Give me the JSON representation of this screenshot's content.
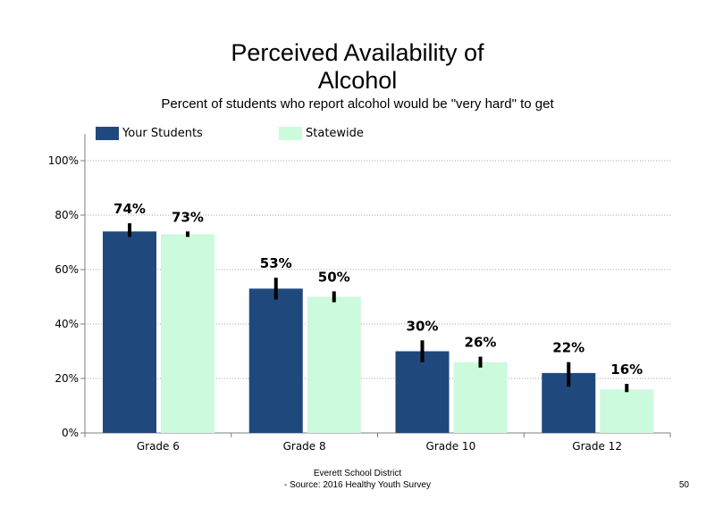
{
  "header": {
    "title_line1": "Perceived Availability of",
    "title_line2": "Alcohol",
    "subtitle": "Percent of students  who report alcohol would be \"very hard\" to get"
  },
  "legend": {
    "series1": "Your Students",
    "series2": "Statewide"
  },
  "footer": {
    "line1": "Everett School District",
    "line2": "- Source: 2016 Healthy  Youth Survey",
    "page_number": "50"
  },
  "colors": {
    "your_students": "#1f497d",
    "statewide": "#ccfadc"
  },
  "chart_data": {
    "type": "bar",
    "categories": [
      "Grade 6",
      "Grade 8",
      "Grade 10",
      "Grade 12"
    ],
    "series": [
      {
        "name": "Your Students",
        "values": [
          74,
          53,
          30,
          22
        ],
        "labels": [
          "74%",
          "53%",
          "30%",
          "22%"
        ],
        "error_low": [
          72,
          49,
          26,
          17
        ],
        "error_high": [
          77,
          57,
          34,
          26
        ],
        "color": "#1f497d"
      },
      {
        "name": "Statewide",
        "values": [
          73,
          50,
          26,
          16
        ],
        "labels": [
          "73%",
          "50%",
          "26%",
          "16%"
        ],
        "error_low": [
          72,
          48,
          24,
          15
        ],
        "error_high": [
          74,
          52,
          28,
          18
        ],
        "color": "#ccfadc"
      }
    ],
    "ylim": [
      0,
      100
    ],
    "yticks": [
      0,
      20,
      40,
      60,
      80,
      100
    ],
    "ytick_labels": [
      "0%",
      "20%",
      "40%",
      "60%",
      "80%",
      "100%"
    ],
    "grid": "dotted horizontal",
    "legend_position": "top"
  }
}
